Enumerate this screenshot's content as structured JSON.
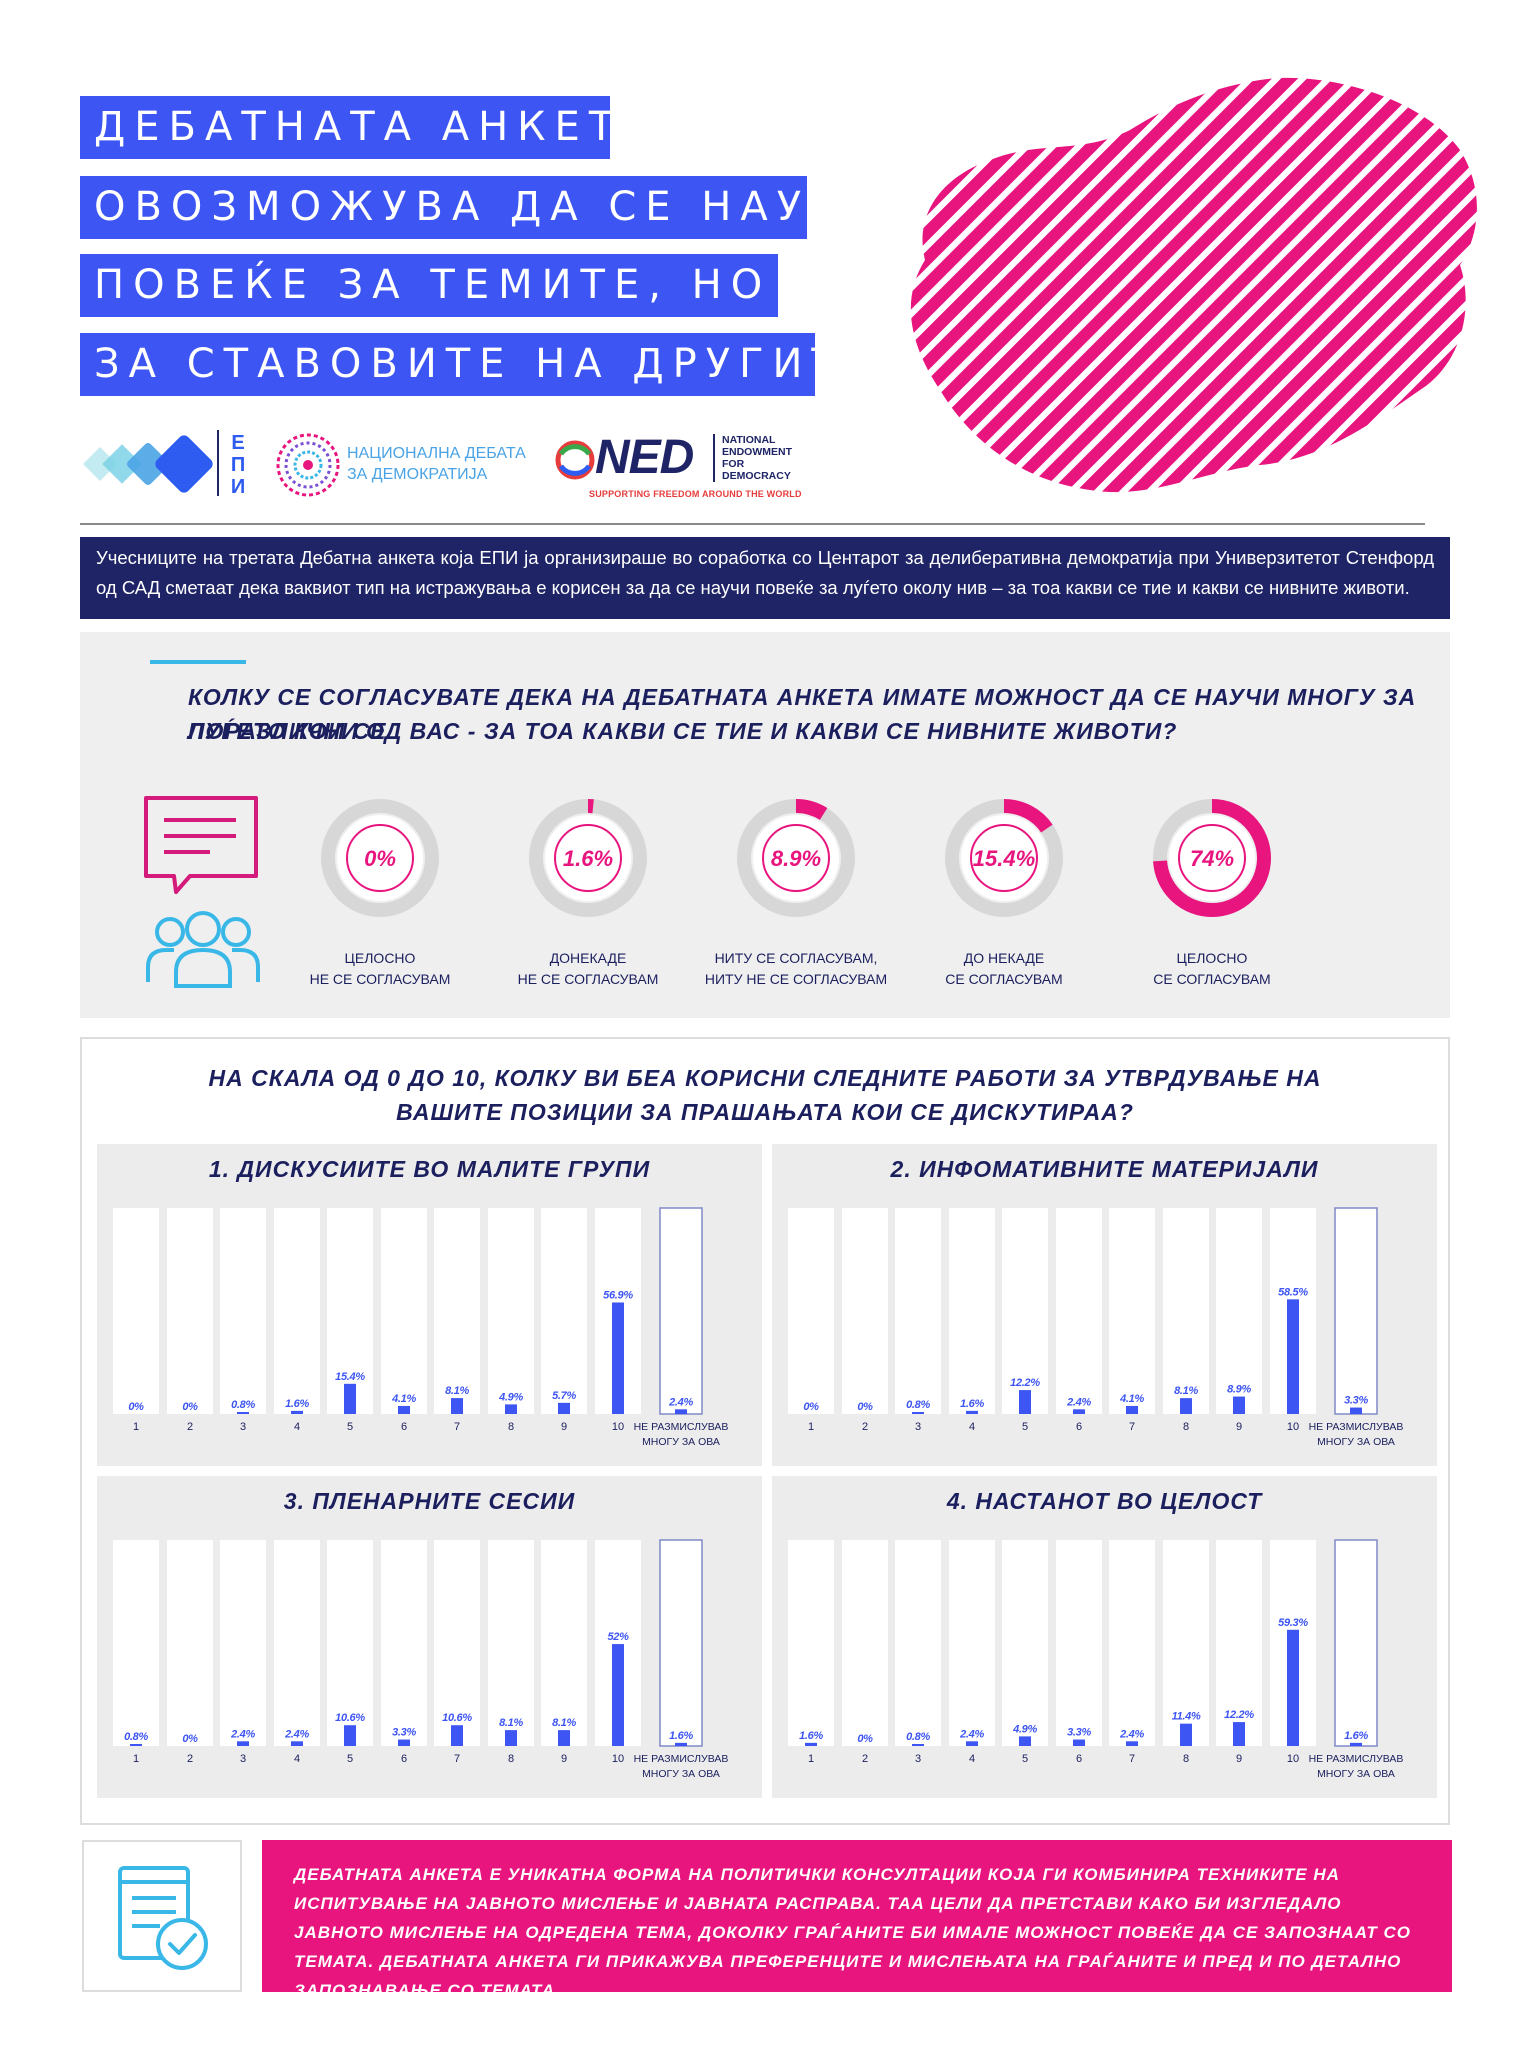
{
  "title": {
    "lines": [
      "ДЕБАТНАТА АНКЕТА",
      "ОВОЗМОЖУВА ДА СЕ НАУЧИ",
      "ПОВЕЌЕ ЗА ТЕМИТЕ, НО И",
      "ЗА СТАВОВИТЕ НА ДРУГИТЕ"
    ]
  },
  "logos": {
    "epi": "ЕПИ",
    "debate_line1": "НАЦИОНАЛНА ДЕБАТА",
    "debate_line2": "ЗА ДЕМОКРАТИЈА",
    "ned": "NED",
    "ned_full_1": "NATIONAL",
    "ned_full_2": "ENDOWMENT",
    "ned_full_3": "FOR",
    "ned_full_4": "DEMOCRACY",
    "ned_tagline": "SUPPORTING FREEDOM AROUND THE WORLD"
  },
  "intro": "Учесниците на третата Дебатна анкета која ЕПИ ја организираше во соработка со Центарот за делиберативна демократија при Универзитетот Стенфорд од САД сметаат дека ваквиот тип на истражувања е корисен за да се научи повеќе за луѓето околу нив – за тоа какви се тие и какви се нивните животи.",
  "q1": {
    "question_line1": "КОЛКУ СЕ СОГЛАСУВАТЕ ДЕКА НА ДЕБАТНАТА АНКЕТА ИМАТЕ МОЖНОСТ ДА СЕ НАУЧИ МНОГУ ЗА ЛУЃЕТО КОИ СЕ",
    "question_line2": "ПОРАЗЛИЧНИ ОД ВАС - ЗА ТОА КАКВИ СЕ ТИЕ И КАКВИ СЕ НИВНИТЕ ЖИВОТИ?"
  },
  "q2": {
    "question_line1": "НА СКАЛА ОД 0 ДО 10, КОЛКУ ВИ БЕА КОРИСНИ СЛЕДНИТЕ РАБОТИ ЗА УТВРДУВАЊЕ НА",
    "question_line2": "ВАШИТЕ ПОЗИЦИИ ЗА ПРАШАЊАТА КОИ СЕ ДИСКУТИРАА?"
  },
  "footer": {
    "text": "ДЕБАТНАТА АНКЕТА Е УНИКАТНА ФОРМА НА ПОЛИТИЧКИ КОНСУЛТАЦИИ КОЈА ГИ КОМБИНИРА ТЕХНИКИТЕ НА ИСПИТУВАЊЕ НА ЈАВНОТО МИСЛЕЊЕ И ЈАВНАТА РАСПРАВА. ТАА ЦЕЛИ ДА ПРЕТСТАВИ КАКО БИ ИЗГЛЕДАЛО ЈАВНОТО МИСЛЕЊЕ НА ОДРЕДЕНА ТЕМА, ДОКОЛКУ ГРАЃАНИТЕ БИ ИМАЛЕ МОЖНОСТ ПОВЕЌЕ ДА СЕ ЗАПОЗНААТ СО ТЕМАТА. ДЕБАТНАТА АНКЕТА ГИ ПРИКАЖУВА ПРЕФЕРЕНЦИТЕ И МИСЛЕЊАТА НА ГРАЃАНИТЕ И ПРЕД И ПО ДЕТАЛНО ЗАПОЗНАВАЊЕ СО ТЕМАТА."
  },
  "colors": {
    "title_bg": "#3d55f3",
    "navy": "#1e2466",
    "pink": "#e8157f",
    "bar": "#3d55f3",
    "icon_cyan": "#39b8e8"
  },
  "chart_data": [
    {
      "type": "pie",
      "categories": [
        "ЦЕЛОСНО НЕ СЕ СОГЛАСУВАМ",
        "ДОНЕКАДЕ НЕ СЕ СОГЛАСУВАМ",
        "НИТУ СЕ СОГЛАСУВАМ, НИТУ НЕ СЕ СОГЛАСУВАМ",
        "ДО НЕКАДЕ СЕ СОГЛАСУВАМ",
        "ЦЕЛОСНО СЕ СОГЛАСУВАМ"
      ],
      "labels_line1": [
        "ЦЕЛОСНО",
        "ДОНЕКАДЕ",
        "НИТУ СЕ СОГЛАСУВАМ,",
        "ДО НЕКАДЕ",
        "ЦЕЛОСНО"
      ],
      "labels_line2": [
        "НЕ СЕ СОГЛАСУВАМ",
        "НЕ СЕ СОГЛАСУВАМ",
        "НИТУ НЕ СЕ СОГЛАСУВАМ",
        "СЕ СОГЛАСУВАМ",
        "СЕ СОГЛАСУВАМ"
      ],
      "values": [
        0,
        1.6,
        8.9,
        15.4,
        74
      ],
      "value_labels": [
        "0%",
        "1.6%",
        "8.9%",
        "15.4%",
        "74%"
      ]
    },
    {
      "type": "bar",
      "title": "1. ДИСКУСИИТЕ ВО МАЛИТЕ ГРУПИ",
      "categories": [
        "1",
        "2",
        "3",
        "4",
        "5",
        "6",
        "7",
        "8",
        "9",
        "10",
        "НЕ РАЗМИСЛУВАВ МНОГУ ЗА ОВА"
      ],
      "values": [
        0,
        0,
        0.8,
        1.6,
        15.4,
        4.1,
        8.1,
        4.9,
        5.7,
        56.9,
        2.4
      ],
      "value_labels": [
        "0%",
        "0%",
        "0.8%",
        "1.6%",
        "15.4%",
        "4.1%",
        "8.1%",
        "4.9%",
        "5.7%",
        "56.9%",
        "2.4%"
      ],
      "ylim": [
        0,
        100
      ]
    },
    {
      "type": "bar",
      "title": "2. ИНФОМАТИВНИТЕ МАТЕРИЈАЛИ",
      "categories": [
        "1",
        "2",
        "3",
        "4",
        "5",
        "6",
        "7",
        "8",
        "9",
        "10",
        "НЕ РАЗМИСЛУВАВ МНОГУ ЗА ОВА"
      ],
      "values": [
        0,
        0,
        0.8,
        1.6,
        12.2,
        2.4,
        4.1,
        8.1,
        8.9,
        58.5,
        3.3
      ],
      "value_labels": [
        "0%",
        "0%",
        "0.8%",
        "1.6%",
        "12.2%",
        "2.4%",
        "4.1%",
        "8.1%",
        "8.9%",
        "58.5%",
        "3.3%"
      ],
      "ylim": [
        0,
        100
      ]
    },
    {
      "type": "bar",
      "title": "3. ПЛЕНАРНИТЕ СЕСИИ",
      "categories": [
        "1",
        "2",
        "3",
        "4",
        "5",
        "6",
        "7",
        "8",
        "9",
        "10",
        "НЕ РАЗМИСЛУВАВ МНОГУ ЗА ОВА"
      ],
      "values": [
        0.8,
        0,
        2.4,
        2.4,
        10.6,
        3.3,
        10.6,
        8.1,
        8.1,
        52,
        1.6
      ],
      "value_labels": [
        "0.8%",
        "0%",
        "2.4%",
        "2.4%",
        "10.6%",
        "3.3%",
        "10.6%",
        "8.1%",
        "8.1%",
        "52%",
        "1.6%"
      ],
      "ylim": [
        0,
        100
      ]
    },
    {
      "type": "bar",
      "title": "4. НАСТАНОТ ВО ЦЕЛОСТ",
      "categories": [
        "1",
        "2",
        "3",
        "4",
        "5",
        "6",
        "7",
        "8",
        "9",
        "10",
        "НЕ РАЗМИСЛУВАВ МНОГУ ЗА ОВА"
      ],
      "values": [
        1.6,
        0,
        0.8,
        2.4,
        4.9,
        3.3,
        2.4,
        11.4,
        12.2,
        59.3,
        1.6
      ],
      "value_labels": [
        "1.6%",
        "0%",
        "0.8%",
        "2.4%",
        "4.9%",
        "3.3%",
        "2.4%",
        "11.4%",
        "12.2%",
        "59.3%",
        "1.6%"
      ],
      "ylim": [
        0,
        100
      ]
    }
  ],
  "last_label_line1": "НЕ РАЗМИСЛУВАВ",
  "last_label_line2": "МНОГУ ЗА ОВА"
}
